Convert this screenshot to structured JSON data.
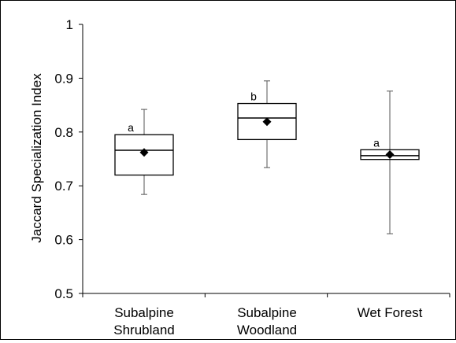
{
  "chart_data": {
    "type": "box",
    "title": "",
    "xlabel": "",
    "ylabel": "Jaccard Specialization Index",
    "ylim": [
      0.5,
      1.0
    ],
    "yticks": [
      0.5,
      0.6,
      0.7,
      0.8,
      0.9,
      1.0
    ],
    "ytick_labels": [
      "0.5",
      "0.6",
      "0.7",
      "0.8",
      "0.9",
      "1"
    ],
    "grid": false,
    "legend": "none",
    "categories": [
      {
        "line1": "Subalpine",
        "line2": "Shrubland"
      },
      {
        "line1": "Subalpine",
        "line2": "Woodland"
      },
      {
        "line1": "Wet Forest",
        "line2": ""
      }
    ],
    "boxes": [
      {
        "whisker_low": 0.684,
        "q1": 0.72,
        "median": 0.766,
        "q3": 0.795,
        "whisker_high": 0.842,
        "mean": 0.762,
        "group_letter": "a"
      },
      {
        "whisker_low": 0.734,
        "q1": 0.786,
        "median": 0.826,
        "q3": 0.853,
        "whisker_high": 0.895,
        "mean": 0.819,
        "group_letter": "b"
      },
      {
        "whisker_low": 0.611,
        "q1": 0.749,
        "median": 0.756,
        "q3": 0.767,
        "whisker_high": 0.876,
        "mean": 0.758,
        "group_letter": "a"
      }
    ],
    "colors": {
      "stroke": "#000000",
      "box_fill": "#ffffff",
      "whisker": "#555555",
      "mean_marker": "#000000"
    }
  }
}
